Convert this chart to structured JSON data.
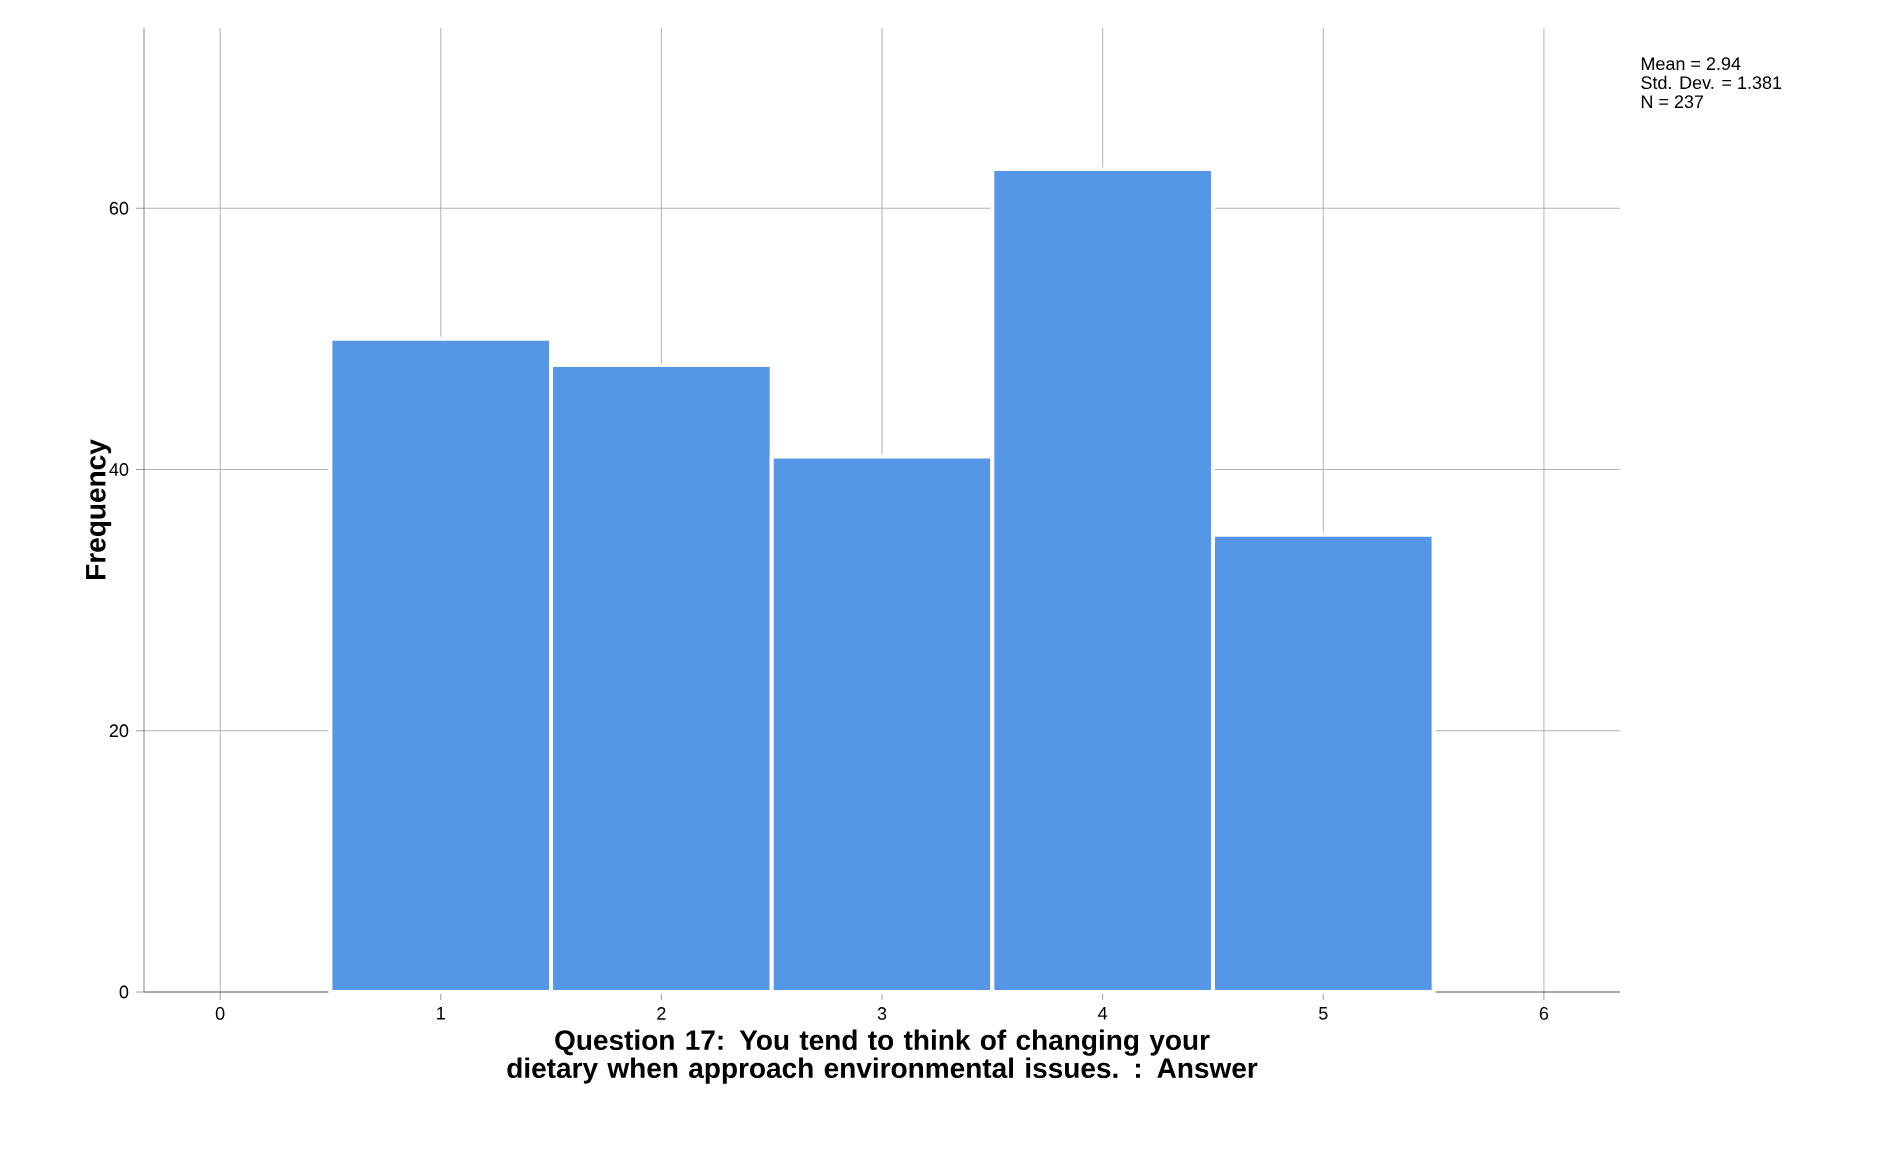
{
  "chart_data": {
    "type": "histogram",
    "xlabel": "Question 17: You tend to think of changing your dietary when approach environmental issues. : Answer",
    "ylabel": "Frequency",
    "bins": [
      0.5,
      1.5,
      2.5,
      3.5,
      4.5,
      5.5
    ],
    "values": [
      50,
      48,
      41,
      63,
      35
    ],
    "color": "#5596e6",
    "xlim": [
      -0.345,
      6.345
    ],
    "ylim": [
      0,
      73.8
    ],
    "xticks": [
      0,
      1,
      2,
      3,
      4,
      5,
      6
    ],
    "yticks": [
      0,
      20,
      40,
      60
    ],
    "grid": true,
    "annotations": [
      "Mean = 2.94",
      "Std. Dev. = 1.381",
      "N = 237"
    ]
  }
}
